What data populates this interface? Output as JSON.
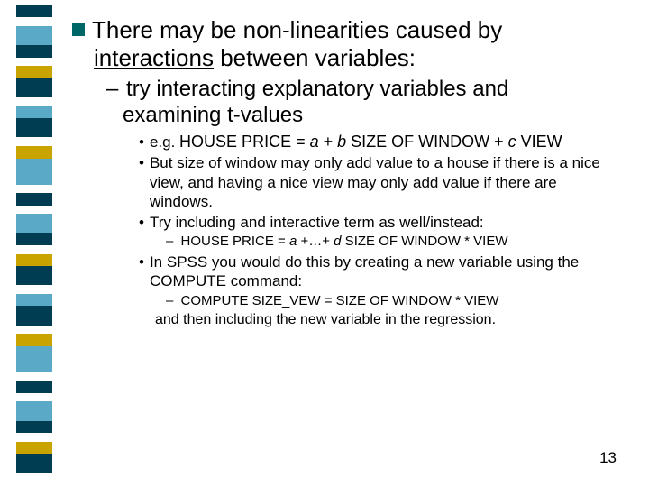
{
  "sidebar": {
    "stripes": [
      {
        "h": 14,
        "c": "#003d52"
      },
      {
        "h": 10,
        "c": "#ffffff"
      },
      {
        "h": 22,
        "c": "#5aa9c7"
      },
      {
        "h": 14,
        "c": "#003d52"
      },
      {
        "h": 10,
        "c": "#ffffff"
      },
      {
        "h": 14,
        "c": "#c9a400"
      },
      {
        "h": 22,
        "c": "#003d52"
      },
      {
        "h": 10,
        "c": "#ffffff"
      },
      {
        "h": 14,
        "c": "#5aa9c7"
      },
      {
        "h": 22,
        "c": "#003d52"
      },
      {
        "h": 10,
        "c": "#ffffff"
      },
      {
        "h": 14,
        "c": "#c9a400"
      },
      {
        "h": 30,
        "c": "#5aa9c7"
      },
      {
        "h": 10,
        "c": "#ffffff"
      },
      {
        "h": 14,
        "c": "#003d52"
      },
      {
        "h": 10,
        "c": "#ffffff"
      },
      {
        "h": 22,
        "c": "#5aa9c7"
      },
      {
        "h": 14,
        "c": "#003d52"
      },
      {
        "h": 10,
        "c": "#ffffff"
      },
      {
        "h": 14,
        "c": "#c9a400"
      },
      {
        "h": 22,
        "c": "#003d52"
      },
      {
        "h": 10,
        "c": "#ffffff"
      },
      {
        "h": 14,
        "c": "#5aa9c7"
      },
      {
        "h": 22,
        "c": "#003d52"
      },
      {
        "h": 10,
        "c": "#ffffff"
      },
      {
        "h": 14,
        "c": "#c9a400"
      },
      {
        "h": 30,
        "c": "#5aa9c7"
      },
      {
        "h": 10,
        "c": "#ffffff"
      },
      {
        "h": 14,
        "c": "#003d52"
      },
      {
        "h": 10,
        "c": "#ffffff"
      },
      {
        "h": 22,
        "c": "#5aa9c7"
      },
      {
        "h": 14,
        "c": "#003d52"
      },
      {
        "h": 10,
        "c": "#ffffff"
      },
      {
        "h": 14,
        "c": "#c9a400"
      },
      {
        "h": 22,
        "c": "#003d52"
      },
      {
        "h": 10,
        "c": "#ffffff"
      }
    ]
  },
  "content": {
    "l1a": "There may be non-linearities caused by",
    "l1b_u": "interactions",
    "l1b_rest": " between variables:",
    "l2a": "try interacting explanatory variables and",
    "l2b": "examining t-values",
    "eg_pre": "e.g. ",
    "eg_a": "HOUSE PRICE = ",
    "eg_i1": "a",
    "eg_b": " + ",
    "eg_i2": "b",
    "eg_c": " SIZE OF WINDOW + ",
    "eg_i3": "c",
    "eg_d": " VIEW",
    "b2": "But size of window may only add value to a house if there is a nice view, and having a nice view may only add value if there are windows.",
    "b3": "Try including and interactive term as well/instead:",
    "f2_a": "HOUSE PRICE = ",
    "f2_i1": "a",
    "f2_b": " +…+ ",
    "f2_i2": "d",
    "f2_c": " SIZE OF WINDOW * VIEW",
    "b4": "In SPSS you would do this by creating a new variable using the COMPUTE command:",
    "f3": "COMPUTE SIZE_VEW = SIZE OF WINDOW * VIEW",
    "b5": "and then including the new variable in the regression."
  },
  "page_number": "13"
}
